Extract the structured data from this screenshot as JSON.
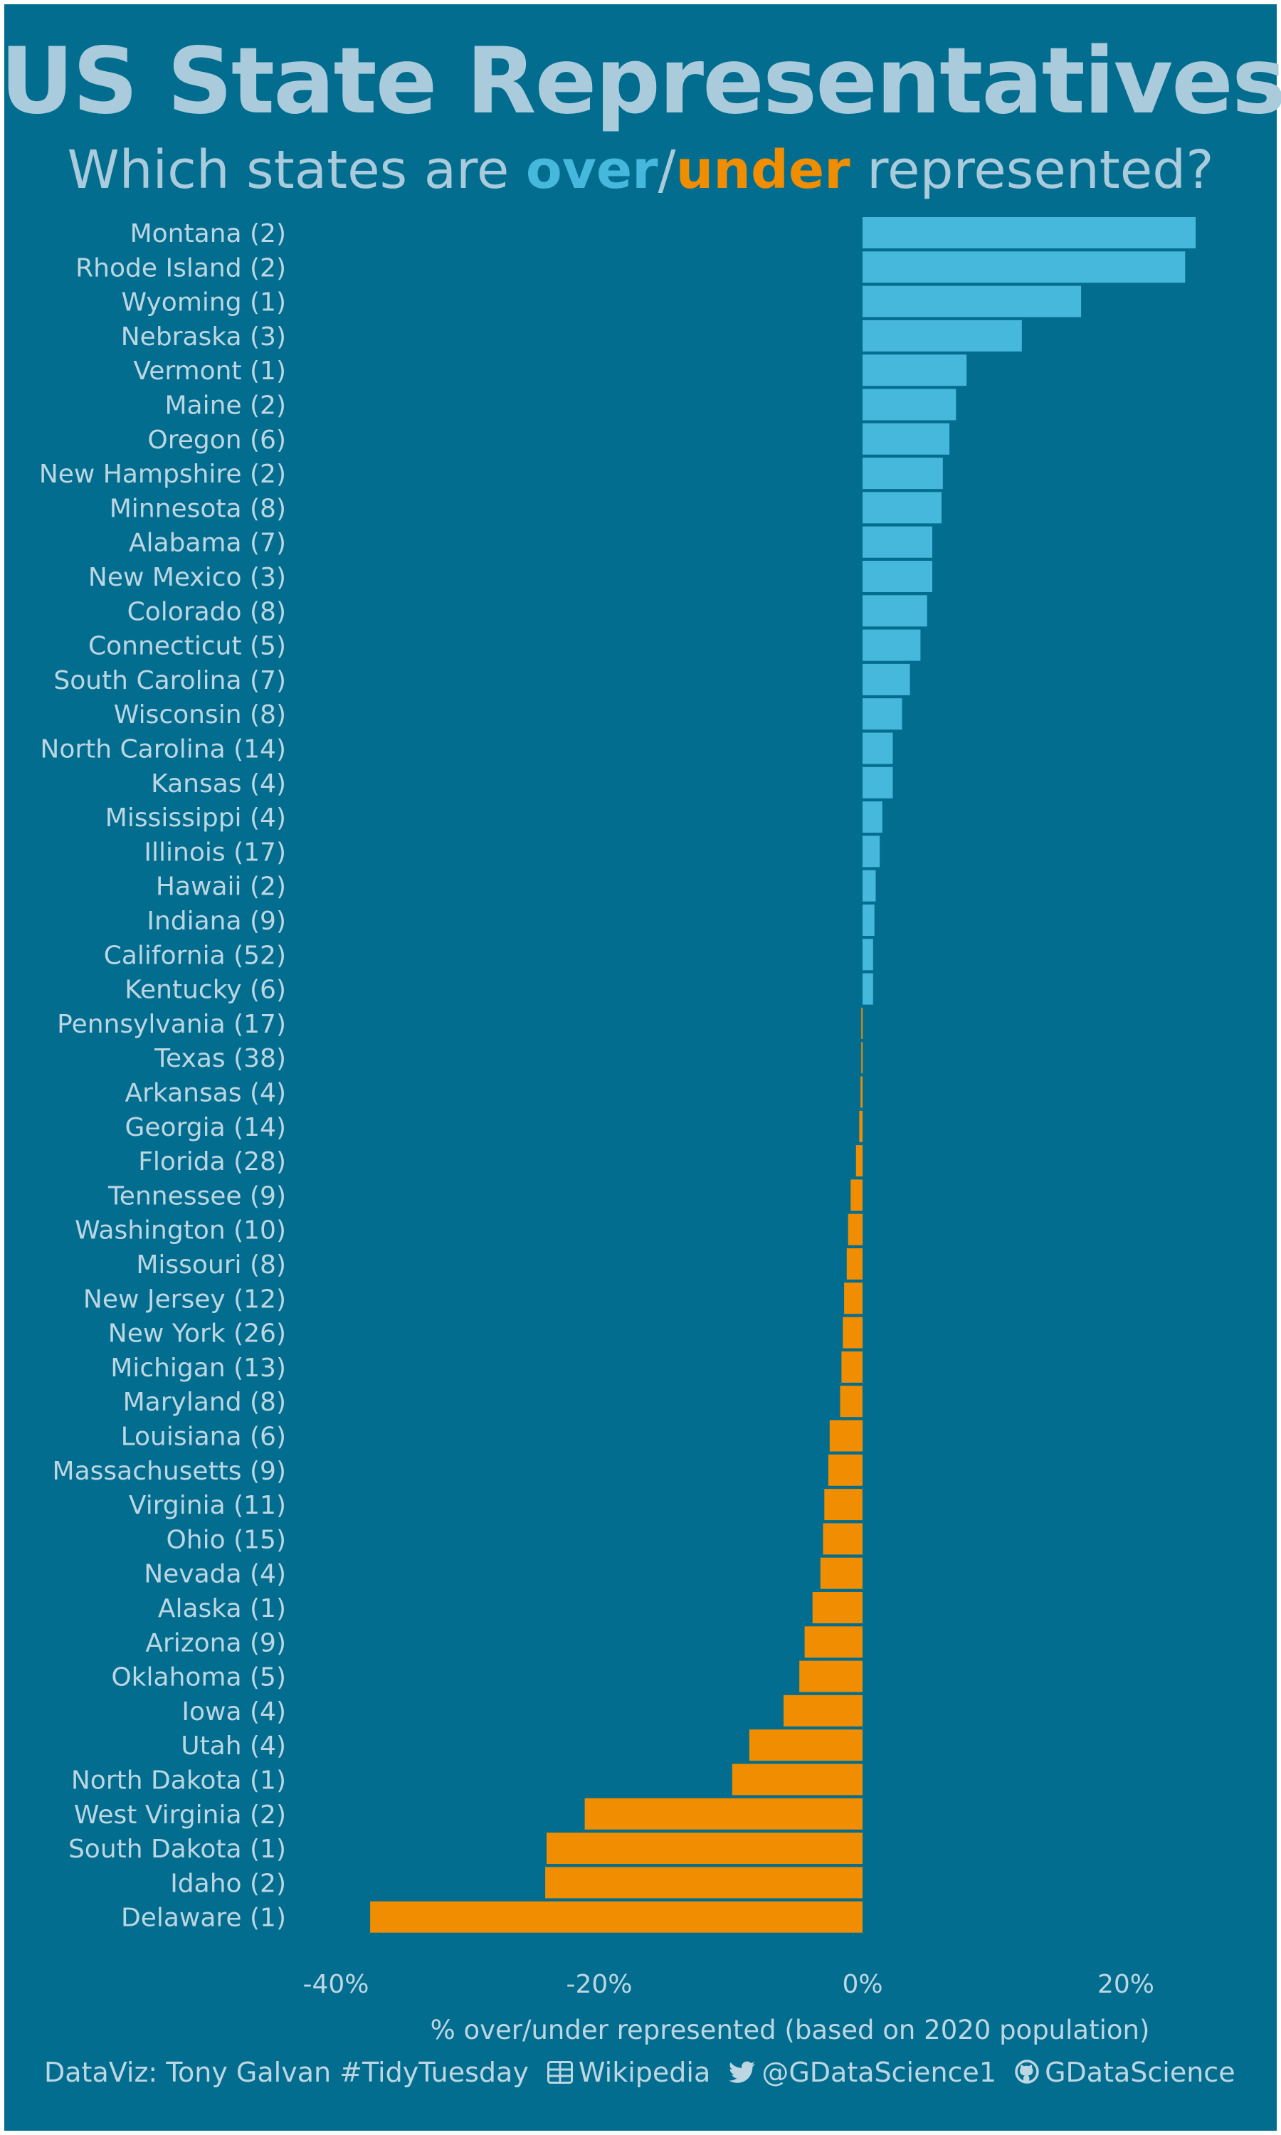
{
  "title": "US State Representatives",
  "subtitle": {
    "lead": "Which states are ",
    "over": "over",
    "sep": "/",
    "under": "under",
    "trail": " represented?"
  },
  "colors": {
    "background": "#026d8f",
    "over": "#46b8dc",
    "under": "#f08d00",
    "text": "#bcd6e2"
  },
  "chart_data": {
    "type": "bar",
    "orientation": "horizontal",
    "xlabel": "% over/under represented (based on 2020 population)",
    "xlim": [
      -40,
      25
    ],
    "x_ticks": [
      -40,
      -20,
      0,
      20
    ],
    "x_tick_labels": [
      "-40%",
      "-20%",
      "0%",
      "20%"
    ],
    "grid": false,
    "categories": [
      "Montana (2)",
      "Rhode Island (2)",
      "Wyoming (1)",
      "Nebraska (3)",
      "Vermont (1)",
      "Maine (2)",
      "Oregon (6)",
      "New Hampshire (2)",
      "Minnesota (8)",
      "Alabama (7)",
      "New Mexico (3)",
      "Colorado (8)",
      "Connecticut (5)",
      "South Carolina (7)",
      "Wisconsin (8)",
      "North Carolina (14)",
      "Kansas (4)",
      "Mississippi (4)",
      "Illinois (17)",
      "Hawaii (2)",
      "Indiana (9)",
      "California (52)",
      "Kentucky (6)",
      "Pennsylvania (17)",
      "Texas (38)",
      "Arkansas (4)",
      "Georgia (14)",
      "Florida (28)",
      "Tennessee (9)",
      "Washington (10)",
      "Missouri (8)",
      "New Jersey (12)",
      "New York (26)",
      "Michigan (13)",
      "Maryland (8)",
      "Louisiana (6)",
      "Massachusetts (9)",
      "Virginia (11)",
      "Ohio (15)",
      "Nevada (4)",
      "Alaska (1)",
      "Arizona (9)",
      "Oklahoma (5)",
      "Iowa (4)",
      "Utah (4)",
      "North Dakota (1)",
      "West Virginia (2)",
      "South Dakota (1)",
      "Idaho (2)",
      "Delaware (1)"
    ],
    "values": [
      25.3,
      24.5,
      16.6,
      12.1,
      7.9,
      7.1,
      6.6,
      6.1,
      6.0,
      5.3,
      5.3,
      4.9,
      4.4,
      3.6,
      3.0,
      2.3,
      2.3,
      1.5,
      1.3,
      1.0,
      0.9,
      0.8,
      0.8,
      -0.1,
      -0.1,
      -0.15,
      -0.25,
      -0.5,
      -0.9,
      -1.1,
      -1.2,
      -1.4,
      -1.5,
      -1.6,
      -1.7,
      -2.5,
      -2.6,
      -2.9,
      -3.0,
      -3.2,
      -3.8,
      -4.4,
      -4.8,
      -6.0,
      -8.6,
      -9.9,
      -21.1,
      -24.0,
      -24.1,
      -37.4
    ]
  },
  "footer": {
    "credit": "DataViz: Tony Galvan #TidyTuesday",
    "source_icon": "table-icon",
    "source": "Wikipedia",
    "twitter_icon": "twitter-icon",
    "twitter": "@GDataScience1",
    "github_icon": "github-icon",
    "github": "GDataScience"
  }
}
